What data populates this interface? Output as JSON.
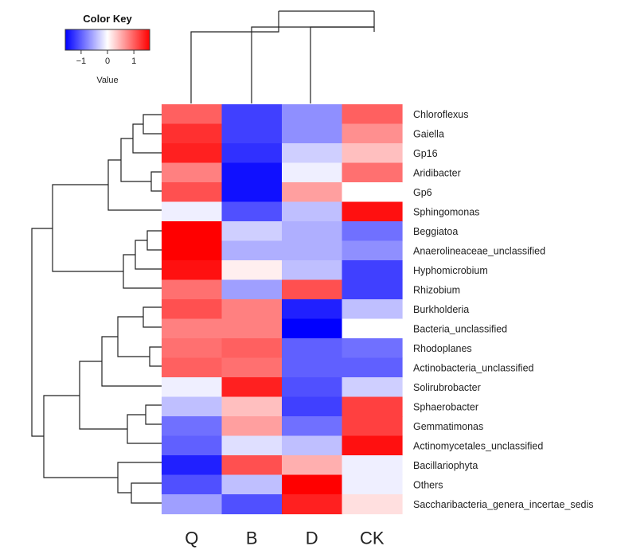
{
  "chart_data": {
    "type": "heatmap",
    "color_key": {
      "title": "Color Key",
      "label": "Value",
      "ticks": [
        -1,
        0,
        1
      ],
      "tick_labels": [
        "−1",
        "0",
        "1"
      ],
      "range": [
        -1.6,
        1.6
      ],
      "low_color": "#0000ff",
      "mid_color": "#ffffff",
      "high_color": "#ff0000"
    },
    "columns": [
      "Q",
      "B",
      "D",
      "CK"
    ],
    "rows": [
      "Chloroflexus",
      "Gaiella",
      "Gp16",
      "Aridibacter",
      "Gp6",
      "Sphingomonas",
      "Beggiatoa",
      "Anaerolineaceae_unclassified",
      "Hyphomicrobium",
      "Rhizobium",
      "Burkholderia",
      "Bacteria_unclassified",
      "Rhodoplanes",
      "Actinobacteria_unclassified",
      "Solirubrobacter",
      "Sphaerobacter",
      "Gemmatimonas",
      "Actinomycetales_unclassified",
      "Bacillariophyta",
      "Others",
      "Saccharibacteria_genera_incertae_sedis"
    ],
    "values": [
      [
        1.0,
        -1.2,
        -0.7,
        1.0
      ],
      [
        1.3,
        -1.2,
        -0.7,
        0.7
      ],
      [
        1.4,
        -1.3,
        -0.3,
        0.4
      ],
      [
        0.8,
        -1.5,
        -0.1,
        0.9
      ],
      [
        1.1,
        -1.5,
        0.6,
        0.0
      ],
      [
        -0.1,
        -1.1,
        -0.4,
        1.5
      ],
      [
        1.6,
        -0.3,
        -0.5,
        -0.9
      ],
      [
        1.6,
        -0.5,
        -0.5,
        -0.7
      ],
      [
        1.5,
        0.1,
        -0.4,
        -1.2
      ],
      [
        0.9,
        -0.6,
        1.1,
        -1.2
      ],
      [
        1.1,
        0.8,
        -1.4,
        -0.4
      ],
      [
        0.8,
        0.8,
        -1.6,
        0.0
      ],
      [
        0.9,
        1.0,
        -1.0,
        -0.9
      ],
      [
        1.0,
        0.9,
        -1.0,
        -1.0
      ],
      [
        -0.1,
        1.4,
        -1.1,
        -0.3
      ],
      [
        -0.4,
        0.4,
        -1.2,
        1.2
      ],
      [
        -0.9,
        0.6,
        -0.9,
        1.2
      ],
      [
        -1.0,
        -0.2,
        -0.4,
        1.5
      ],
      [
        -1.4,
        1.1,
        0.5,
        -0.1
      ],
      [
        -1.1,
        -0.4,
        1.6,
        -0.1
      ],
      [
        -0.6,
        -1.1,
        1.4,
        0.2
      ]
    ]
  }
}
